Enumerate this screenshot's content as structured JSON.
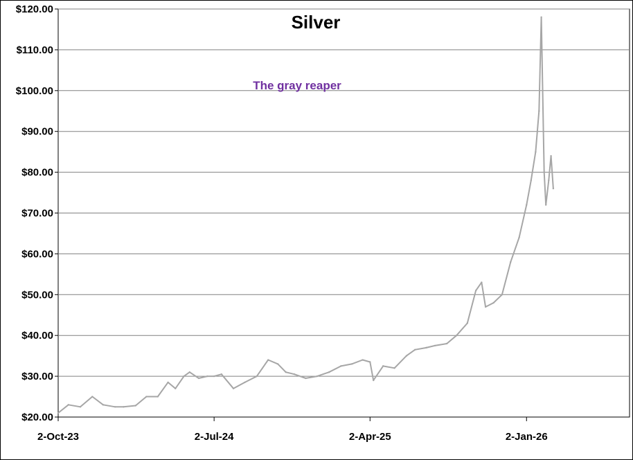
{
  "chart_data": {
    "type": "line",
    "title": "Silver",
    "annotation": "The gray reaper",
    "xlabel": "",
    "ylabel": "",
    "ylim": [
      20,
      120
    ],
    "yticks": [
      "$20.00",
      "$30.00",
      "$40.00",
      "$50.00",
      "$60.00",
      "$70.00",
      "$80.00",
      "$90.00",
      "$100.00",
      "$110.00",
      "$120.00"
    ],
    "xlim": [
      "2023-10-02",
      "2026-07-02"
    ],
    "xticks": [
      {
        "date": "2023-10-02",
        "label": "2-Oct-23"
      },
      {
        "date": "2024-07-02",
        "label": "2-Jul-24"
      },
      {
        "date": "2025-04-02",
        "label": "2-Apr-25"
      },
      {
        "date": "2026-01-02",
        "label": "2-Jan-26"
      }
    ],
    "grid": true,
    "line_color": "#a6a6a6",
    "annotation_color": "#7030a0",
    "series": [
      {
        "x": [
          "2023-10-02",
          "2023-10-20",
          "2023-11-10",
          "2023-12-01",
          "2023-12-20",
          "2024-01-10",
          "2024-01-25",
          "2024-02-15",
          "2024-03-05",
          "2024-03-25",
          "2024-04-12",
          "2024-04-25",
          "2024-05-10",
          "2024-05-20",
          "2024-06-05",
          "2024-06-20",
          "2024-07-02",
          "2024-07-15",
          "2024-08-05",
          "2024-08-25",
          "2024-09-15",
          "2024-10-05",
          "2024-10-22",
          "2024-11-05",
          "2024-11-20",
          "2024-12-10",
          "2024-12-30",
          "2025-01-20",
          "2025-02-10",
          "2025-03-01",
          "2025-03-20",
          "2025-04-02",
          "2025-04-08",
          "2025-04-25",
          "2025-05-15",
          "2025-06-05",
          "2025-06-20",
          "2025-07-10",
          "2025-07-25",
          "2025-08-15",
          "2025-09-01",
          "2025-09-20",
          "2025-10-05",
          "2025-10-15",
          "2025-10-22",
          "2025-11-05",
          "2025-11-20",
          "2025-12-05",
          "2025-12-20",
          "2026-01-02",
          "2026-01-10",
          "2026-01-18",
          "2026-01-24",
          "2026-01-28",
          "2026-02-02",
          "2026-02-05",
          "2026-02-10",
          "2026-02-14",
          "2026-02-18"
        ],
        "values": [
          21,
          23,
          22.5,
          25,
          23,
          22.5,
          22.5,
          22.8,
          25,
          25,
          28.5,
          27,
          30,
          31,
          29.5,
          30,
          30,
          30.5,
          27,
          28.5,
          30,
          34,
          33,
          31,
          30.5,
          29.5,
          30,
          31,
          32.5,
          33,
          34,
          33.5,
          29,
          32.5,
          32,
          35,
          36.5,
          37,
          37.5,
          38,
          40,
          43,
          51,
          53,
          47,
          48,
          50,
          58,
          64,
          72,
          78,
          85,
          95,
          118,
          80,
          72,
          78,
          84,
          76
        ]
      }
    ]
  }
}
